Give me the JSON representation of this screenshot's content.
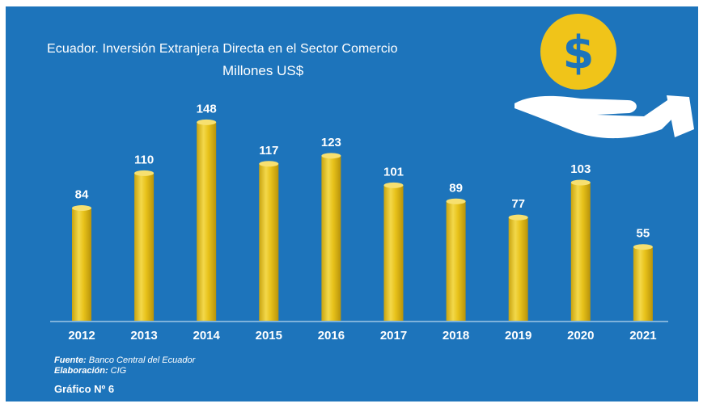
{
  "chart_data": {
    "type": "bar",
    "title": "Ecuador. Inversión Extranjera Directa en el Sector Comercio",
    "subtitle": "Millones US$",
    "categories": [
      "2012",
      "2013",
      "2014",
      "2015",
      "2016",
      "2017",
      "2018",
      "2019",
      "2020",
      "2021"
    ],
    "values": [
      84,
      110,
      148,
      117,
      123,
      101,
      89,
      77,
      103,
      55
    ],
    "ylim": [
      0,
      160
    ],
    "bar_color": "#e8c21a",
    "background_color": "#1d74bb"
  },
  "footer": {
    "fuente_label": "Fuente:",
    "fuente_value": " Banco Central del Ecuador",
    "elaboracion_label": "Elaboración:",
    "elaboracion_value": " CIG",
    "grafico": "Gráfico Nº 6"
  },
  "icon": {
    "name": "hand-coin-dollar-icon",
    "symbol": "$",
    "coin_color": "#f0c419"
  }
}
